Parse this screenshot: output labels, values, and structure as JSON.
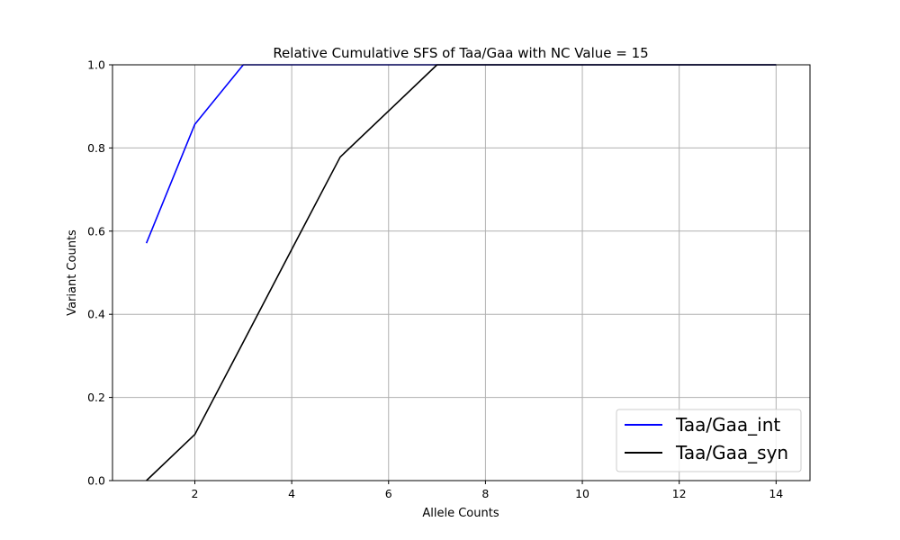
{
  "chart_data": {
    "type": "line",
    "title": "Relative Cumulative SFS of Taa/Gaa with NC Value = 15",
    "xlabel": "Allele Counts",
    "ylabel": "Variant Counts",
    "xlim": [
      0.3,
      14.7
    ],
    "ylim": [
      0,
      1.0
    ],
    "xticks": [
      2,
      4,
      6,
      8,
      10,
      12,
      14
    ],
    "yticks": [
      0.0,
      0.2,
      0.4,
      0.6,
      0.8,
      1.0
    ],
    "grid": true,
    "legend_position": "lower-right",
    "x": [
      1,
      2,
      3,
      4,
      5,
      6,
      7,
      8,
      9,
      10,
      11,
      12,
      13,
      14
    ],
    "series": [
      {
        "name": "Taa/Gaa_int",
        "color": "#0000ff",
        "values": [
          0.571,
          0.857,
          1.0,
          1.0,
          1.0,
          1.0,
          1.0,
          1.0,
          1.0,
          1.0,
          1.0,
          1.0,
          1.0,
          1.0
        ]
      },
      {
        "name": "Taa/Gaa_syn",
        "color": "#000000",
        "values": [
          0.0,
          0.111,
          0.333,
          0.556,
          0.778,
          0.889,
          1.0,
          1.0,
          1.0,
          1.0,
          1.0,
          1.0,
          1.0,
          1.0
        ]
      }
    ]
  }
}
